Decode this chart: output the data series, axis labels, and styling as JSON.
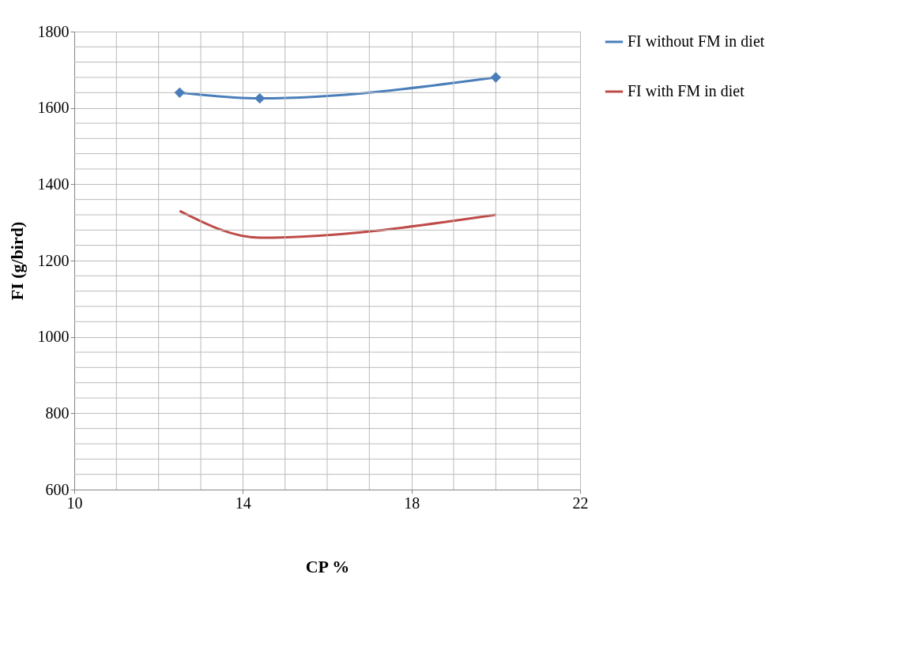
{
  "chart_data": {
    "type": "line",
    "xlabel": "CP %",
    "ylabel": "FI (g/bird)",
    "xlim": [
      10,
      22
    ],
    "ylim": [
      600,
      1800
    ],
    "xticks": [
      10,
      {
        "value": 11,
        "label": null
      },
      {
        "value": 12,
        "label": null
      },
      {
        "value": 13,
        "label": null
      },
      14,
      {
        "value": 15,
        "label": null
      },
      {
        "value": 16,
        "label": null
      },
      {
        "value": 17,
        "label": null
      },
      18,
      {
        "value": 19,
        "label": null
      },
      {
        "value": 20,
        "label": null
      },
      {
        "value": 21,
        "label": null
      },
      22
    ],
    "yticks": [
      600,
      {
        "value": 640,
        "label": null
      },
      {
        "value": 680,
        "label": null
      },
      {
        "value": 720,
        "label": null
      },
      {
        "value": 760,
        "label": null
      },
      800,
      {
        "value": 840,
        "label": null
      },
      {
        "value": 880,
        "label": null
      },
      {
        "value": 920,
        "label": null
      },
      {
        "value": 960,
        "label": null
      },
      1000,
      {
        "value": 1040,
        "label": null
      },
      {
        "value": 1080,
        "label": null
      },
      {
        "value": 1120,
        "label": null
      },
      {
        "value": 1160,
        "label": null
      },
      1200,
      {
        "value": 1240,
        "label": null
      },
      {
        "value": 1280,
        "label": null
      },
      {
        "value": 1320,
        "label": null
      },
      {
        "value": 1360,
        "label": null
      },
      1400,
      {
        "value": 1440,
        "label": null
      },
      {
        "value": 1480,
        "label": null
      },
      {
        "value": 1520,
        "label": null
      },
      {
        "value": 1560,
        "label": null
      },
      1600,
      {
        "value": 1640,
        "label": null
      },
      {
        "value": 1680,
        "label": null
      },
      {
        "value": 1720,
        "label": null
      },
      {
        "value": 1760,
        "label": null
      },
      1800
    ],
    "x": [
      12.5,
      14.4,
      20
    ],
    "series": [
      {
        "name": "FI without FM in diet",
        "color": "#4a7ebb",
        "values": [
          1640,
          1625,
          1680
        ],
        "marker": "diamond"
      },
      {
        "name": "FI with FM in diet",
        "color": "#be4b48",
        "values": [
          1330,
          1260,
          1320
        ],
        "marker": "none"
      }
    ],
    "grid": true,
    "legend": "right",
    "line_style": "solid"
  }
}
